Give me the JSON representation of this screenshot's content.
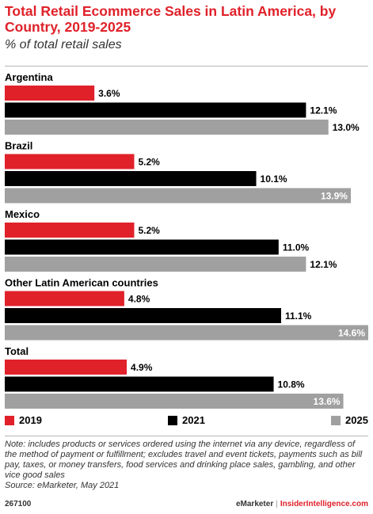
{
  "header": {
    "title": "Total Retail Ecommerce Sales in Latin America, by Country, 2019-2025",
    "subtitle": "% of total retail sales"
  },
  "colors": {
    "2019": "#e0212a",
    "2021": "#000000",
    "2025": "#a0a0a0",
    "accent": "#e0212a"
  },
  "chart_data": {
    "type": "bar",
    "orientation": "horizontal",
    "categories": [
      "Argentina",
      "Brazil",
      "Mexico",
      "Other Latin American countries",
      "Total"
    ],
    "series": [
      {
        "name": "2019",
        "values": [
          3.6,
          5.2,
          5.2,
          4.8,
          4.9
        ],
        "labels": [
          "3.6%",
          "5.2%",
          "5.2%",
          "4.8%",
          "4.9%"
        ]
      },
      {
        "name": "2021",
        "values": [
          12.1,
          10.1,
          11.0,
          11.1,
          10.8
        ],
        "labels": [
          "12.1%",
          "10.1%",
          "11.0%",
          "11.1%",
          "10.8%"
        ]
      },
      {
        "name": "2025",
        "values": [
          13.0,
          13.9,
          12.1,
          14.6,
          13.6
        ],
        "labels": [
          "13.0%",
          "13.9%",
          "12.1%",
          "14.6%",
          "13.6%"
        ]
      }
    ],
    "xlim": [
      0,
      14.6
    ],
    "grid": false,
    "legend": "bottom"
  },
  "legend": {
    "items": [
      {
        "label": "2019"
      },
      {
        "label": "2021"
      },
      {
        "label": "2025"
      }
    ]
  },
  "note": {
    "text": "Note: includes products or services ordered using the internet via any device, regardless of the method of payment or fulfillment; excludes travel and event tickets, payments such as bill pay, taxes, or money transfers, food services and drinking place sales, gambling, and other vice good sales",
    "source": "Source: eMarketer, May 2021"
  },
  "footer": {
    "id": "267100",
    "brand": "eMarketer",
    "divider": "|",
    "site": "InsiderIntelligence.com"
  }
}
